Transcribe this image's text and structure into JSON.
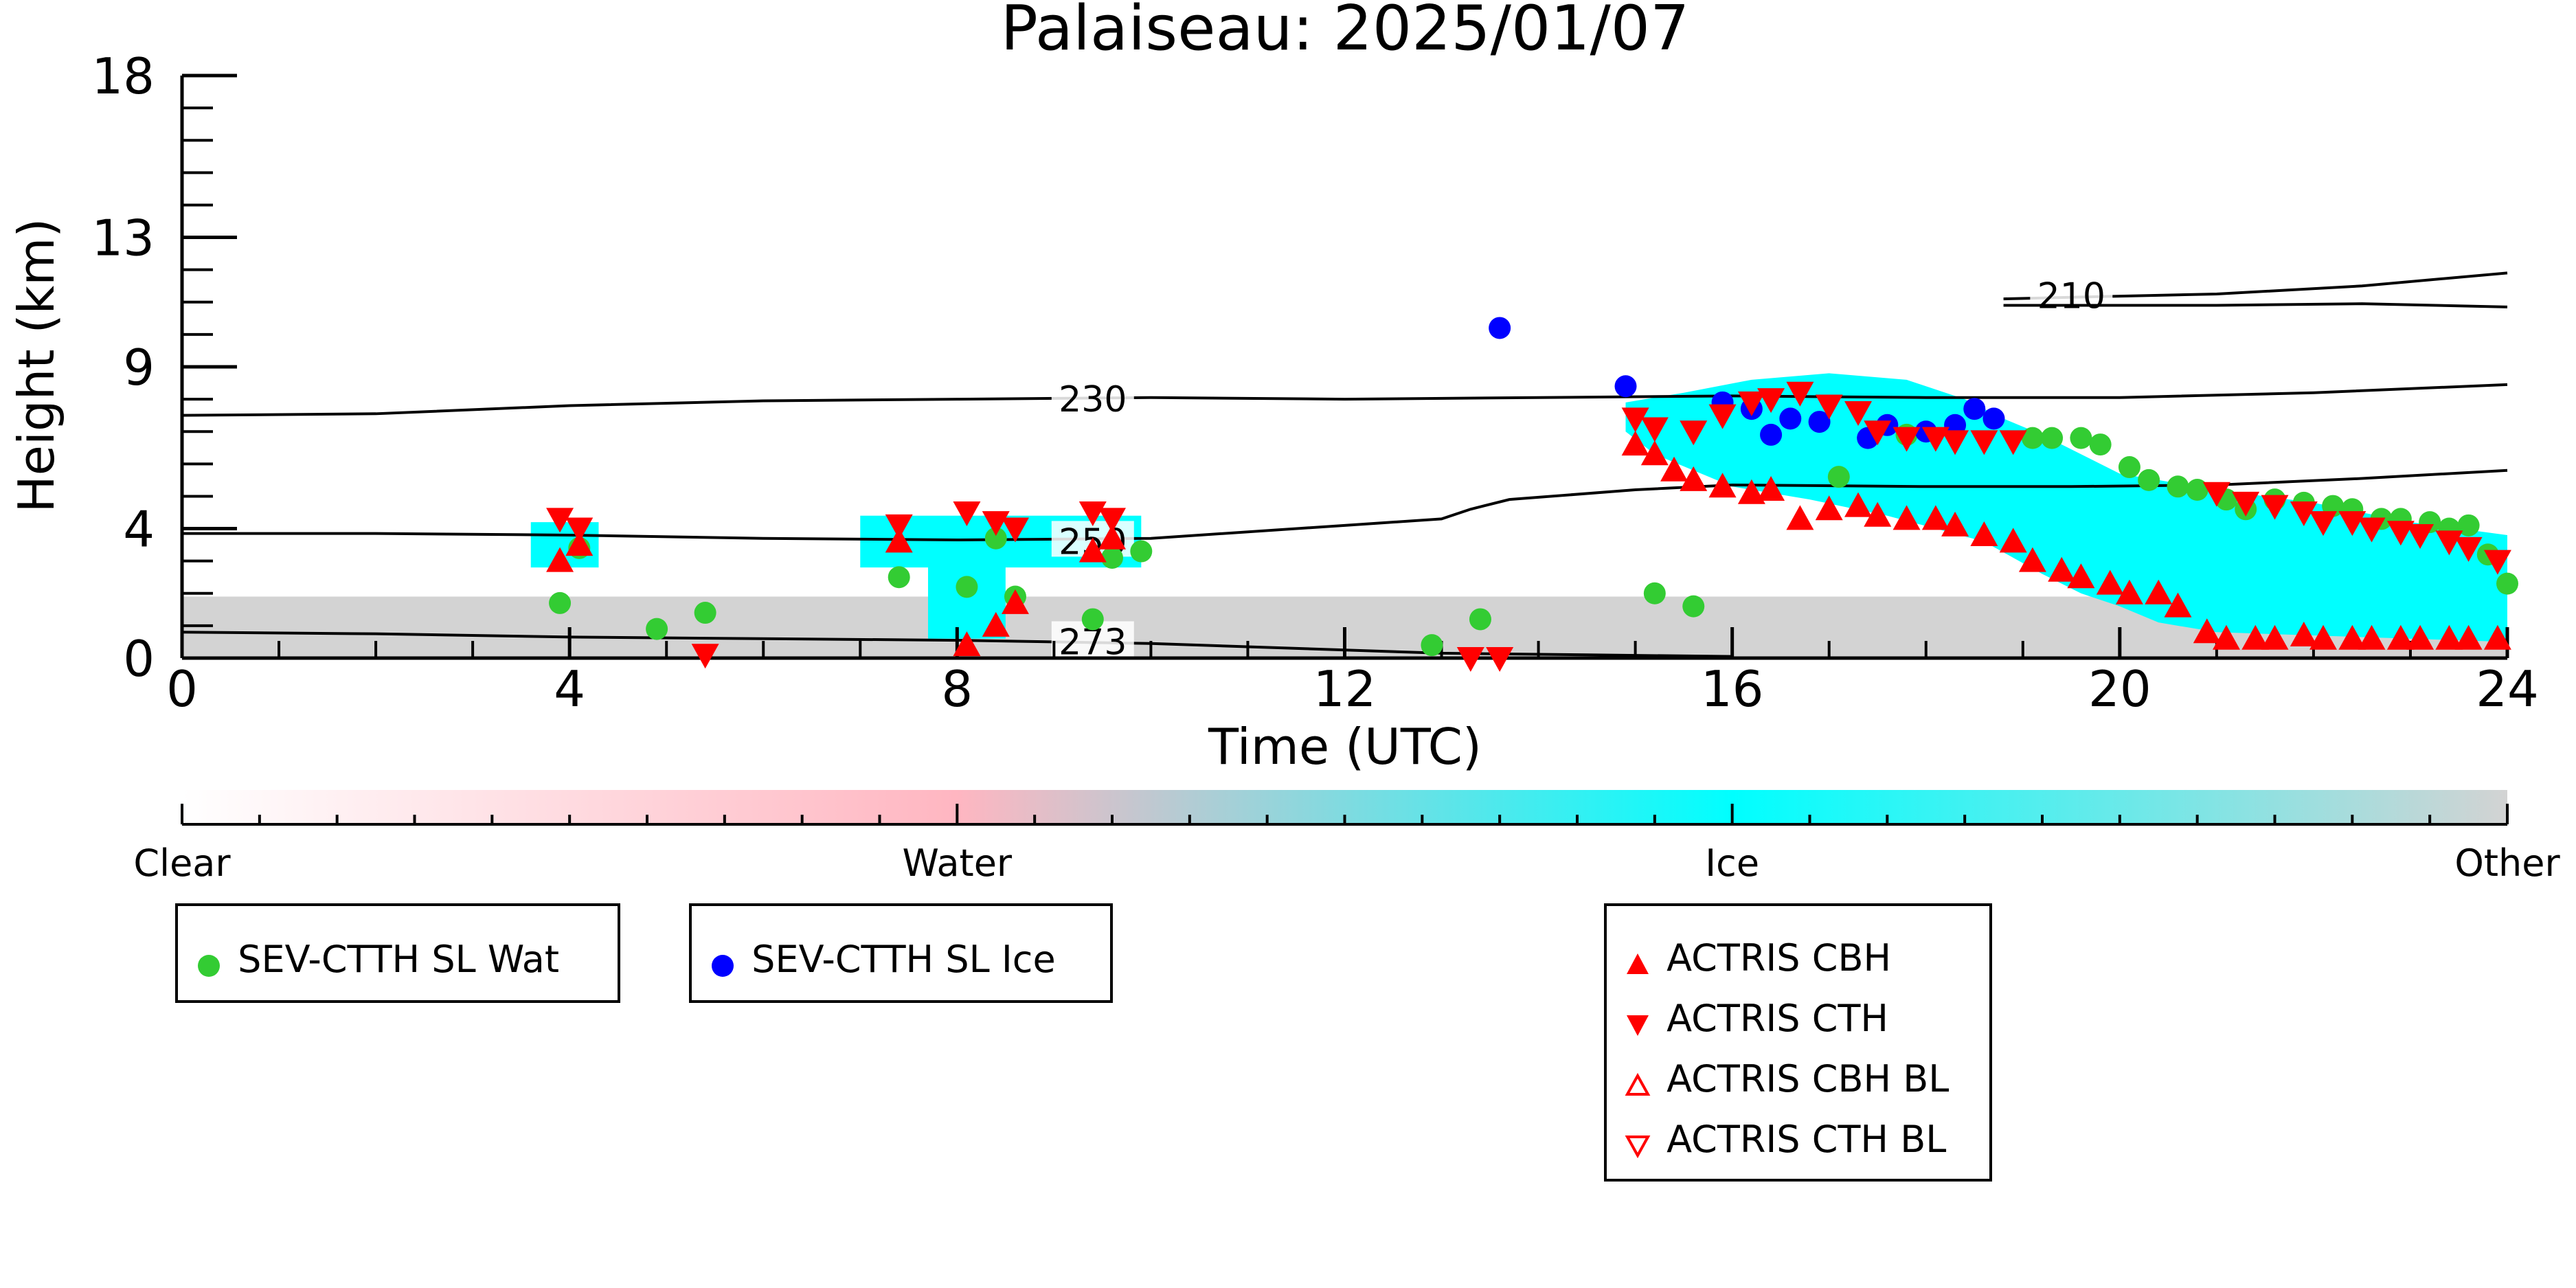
{
  "chart_data": {
    "type": "scatter",
    "title": "Palaiseau: 2025/01/07",
    "xlabel": "Time (UTC)",
    "ylabel": "Height (km)",
    "xlim": [
      0,
      24
    ],
    "ylim": [
      0,
      18
    ],
    "x_ticks": [
      "0",
      "4",
      "8",
      "12",
      "16",
      "20",
      "24"
    ],
    "y_ticks": [
      "0",
      "4",
      "9",
      "13",
      "18"
    ],
    "colorbar": {
      "labels": [
        "Clear",
        "Water",
        "Ice",
        "Other"
      ],
      "stops": [
        "#ffffff",
        "#ffb6c1",
        "#00ffff",
        "#d3d3d3"
      ]
    },
    "colors": {
      "sev_water": "#33cc33",
      "sev_ice": "#0000ff",
      "actris": "#ff0000",
      "ice_mask": "#00ffff",
      "other_mask": "#d3d3d3",
      "water_mask": "#ffb6c1"
    },
    "contours": [
      {
        "label": "210",
        "label_at": [
          19.5,
          11.2
        ],
        "points": [
          [
            18.8,
            11.1
          ],
          [
            19.5,
            11.15
          ],
          [
            21,
            11.25
          ],
          [
            22.5,
            11.5
          ],
          [
            24,
            11.9
          ]
        ]
      },
      {
        "label": "",
        "points": [
          [
            18.8,
            10.9
          ],
          [
            21,
            10.9
          ],
          [
            22.5,
            10.95
          ],
          [
            24,
            10.85
          ]
        ]
      },
      {
        "label": "230",
        "label_at": [
          9.4,
          8.0
        ],
        "points": [
          [
            0,
            7.5
          ],
          [
            2,
            7.55
          ],
          [
            4,
            7.8
          ],
          [
            6,
            7.95
          ],
          [
            8,
            8.0
          ],
          [
            10,
            8.05
          ],
          [
            12,
            8.0
          ],
          [
            14,
            8.05
          ],
          [
            16,
            8.1
          ],
          [
            18,
            8.05
          ],
          [
            20,
            8.05
          ],
          [
            22,
            8.2
          ],
          [
            24,
            8.45
          ]
        ]
      },
      {
        "label": "250",
        "label_at": [
          9.4,
          3.6
        ],
        "points": [
          [
            0,
            3.85
          ],
          [
            2,
            3.85
          ],
          [
            4,
            3.8
          ],
          [
            6,
            3.7
          ],
          [
            8,
            3.65
          ],
          [
            10,
            3.7
          ],
          [
            12,
            4.1
          ],
          [
            13,
            4.3
          ],
          [
            13.3,
            4.6
          ],
          [
            13.7,
            4.9
          ],
          [
            15,
            5.2
          ],
          [
            16,
            5.35
          ],
          [
            18,
            5.3
          ],
          [
            19.5,
            5.3
          ],
          [
            21,
            5.35
          ],
          [
            22.5,
            5.55
          ],
          [
            24,
            5.8
          ]
        ]
      },
      {
        "label": "273",
        "label_at": [
          9.4,
          0.5
        ],
        "points": [
          [
            0,
            0.8
          ],
          [
            2,
            0.75
          ],
          [
            4,
            0.65
          ],
          [
            6,
            0.6
          ],
          [
            8,
            0.55
          ],
          [
            10,
            0.45
          ],
          [
            11.5,
            0.3
          ],
          [
            13,
            0.15
          ],
          [
            14.5,
            0.1
          ],
          [
            16,
            0.05
          ]
        ]
      }
    ],
    "ice_regions": [
      {
        "x": [
          3.6,
          4.3
        ],
        "y": [
          2.8,
          4.2
        ]
      },
      {
        "x": [
          7.0,
          9.9
        ],
        "y": [
          2.8,
          4.4
        ]
      },
      {
        "x": [
          7.7,
          8.5
        ],
        "y": [
          0.6,
          3.0
        ]
      }
    ],
    "ice_polygon": [
      [
        14.9,
        7.9
      ],
      [
        15.5,
        8.2
      ],
      [
        16.2,
        8.6
      ],
      [
        17.0,
        8.8
      ],
      [
        17.8,
        8.6
      ],
      [
        18.4,
        8.0
      ],
      [
        18.8,
        7.4
      ],
      [
        19.2,
        6.9
      ],
      [
        20.0,
        5.7
      ],
      [
        21.0,
        5.2
      ],
      [
        22.0,
        4.8
      ],
      [
        23.0,
        4.2
      ],
      [
        24.0,
        3.8
      ],
      [
        24.0,
        0.5
      ],
      [
        22.0,
        0.7
      ],
      [
        21.0,
        0.8
      ],
      [
        20.4,
        1.1
      ],
      [
        20.0,
        1.6
      ],
      [
        19.6,
        2.0
      ],
      [
        19.2,
        2.6
      ],
      [
        18.6,
        3.6
      ],
      [
        17.6,
        4.4
      ],
      [
        16.8,
        4.9
      ],
      [
        16.0,
        5.3
      ],
      [
        15.2,
        6.3
      ],
      [
        14.9,
        7.0
      ]
    ],
    "other_ground": {
      "x": [
        0,
        24
      ],
      "y": [
        0,
        1.9
      ]
    },
    "sev_ctth_sl_wat": [
      [
        3.9,
        1.7
      ],
      [
        4.1,
        3.4
      ],
      [
        4.9,
        0.9
      ],
      [
        5.4,
        1.4
      ],
      [
        7.4,
        2.5
      ],
      [
        8.1,
        2.2
      ],
      [
        8.4,
        3.7
      ],
      [
        8.6,
        1.9
      ],
      [
        9.4,
        1.2
      ],
      [
        9.6,
        3.1
      ],
      [
        9.9,
        3.3
      ],
      [
        12.9,
        0.4
      ],
      [
        13.4,
        1.2
      ],
      [
        15.2,
        2.0
      ],
      [
        15.6,
        1.6
      ],
      [
        17.1,
        5.6
      ],
      [
        17.8,
        6.9
      ],
      [
        19.1,
        6.8
      ],
      [
        19.3,
        6.8
      ],
      [
        19.6,
        6.8
      ],
      [
        19.8,
        6.6
      ],
      [
        20.1,
        5.9
      ],
      [
        20.3,
        5.5
      ],
      [
        20.6,
        5.3
      ],
      [
        20.8,
        5.2
      ],
      [
        21.1,
        4.9
      ],
      [
        21.3,
        4.6
      ],
      [
        21.6,
        4.9
      ],
      [
        21.9,
        4.8
      ],
      [
        22.2,
        4.7
      ],
      [
        22.4,
        4.6
      ],
      [
        22.7,
        4.3
      ],
      [
        22.9,
        4.3
      ],
      [
        23.2,
        4.2
      ],
      [
        23.4,
        4.0
      ],
      [
        23.6,
        4.1
      ],
      [
        23.8,
        3.2
      ],
      [
        24.0,
        2.3
      ]
    ],
    "sev_ctth_sl_ice": [
      [
        13.6,
        10.2
      ],
      [
        14.9,
        8.4
      ],
      [
        15.9,
        7.9
      ],
      [
        16.2,
        7.7
      ],
      [
        16.4,
        6.9
      ],
      [
        16.6,
        7.4
      ],
      [
        16.9,
        7.3
      ],
      [
        17.4,
        6.8
      ],
      [
        17.6,
        7.2
      ],
      [
        18.0,
        7.0
      ],
      [
        18.3,
        7.2
      ],
      [
        18.5,
        7.7
      ],
      [
        18.7,
        7.4
      ]
    ],
    "actris_cbh": [
      [
        3.9,
        3.0
      ],
      [
        4.1,
        3.5
      ],
      [
        7.4,
        3.6
      ],
      [
        8.1,
        0.4
      ],
      [
        8.4,
        1.0
      ],
      [
        8.6,
        1.7
      ],
      [
        9.4,
        3.3
      ],
      [
        9.6,
        3.7
      ],
      [
        15.0,
        6.6
      ],
      [
        15.2,
        6.3
      ],
      [
        15.4,
        5.8
      ],
      [
        15.6,
        5.5
      ],
      [
        15.9,
        5.3
      ],
      [
        16.2,
        5.1
      ],
      [
        16.4,
        5.2
      ],
      [
        16.7,
        4.3
      ],
      [
        17.0,
        4.6
      ],
      [
        17.3,
        4.7
      ],
      [
        17.5,
        4.4
      ],
      [
        17.8,
        4.3
      ],
      [
        18.1,
        4.3
      ],
      [
        18.3,
        4.1
      ],
      [
        18.6,
        3.8
      ],
      [
        18.9,
        3.6
      ],
      [
        19.1,
        3.0
      ],
      [
        19.4,
        2.7
      ],
      [
        19.6,
        2.5
      ],
      [
        19.9,
        2.3
      ],
      [
        20.1,
        2.0
      ],
      [
        20.4,
        2.0
      ],
      [
        20.6,
        1.6
      ],
      [
        20.9,
        0.8
      ],
      [
        21.1,
        0.6
      ],
      [
        21.4,
        0.6
      ],
      [
        21.6,
        0.6
      ],
      [
        21.9,
        0.7
      ],
      [
        22.1,
        0.6
      ],
      [
        22.4,
        0.6
      ],
      [
        22.6,
        0.6
      ],
      [
        22.9,
        0.6
      ],
      [
        23.1,
        0.6
      ],
      [
        23.4,
        0.6
      ],
      [
        23.6,
        0.6
      ],
      [
        23.9,
        0.6
      ]
    ],
    "actris_cth": [
      [
        3.9,
        4.3
      ],
      [
        4.1,
        4.0
      ],
      [
        5.4,
        0.1
      ],
      [
        7.4,
        4.1
      ],
      [
        8.1,
        4.5
      ],
      [
        8.4,
        4.2
      ],
      [
        8.6,
        4.0
      ],
      [
        9.4,
        4.5
      ],
      [
        9.6,
        4.3
      ],
      [
        13.3,
        0.0
      ],
      [
        13.6,
        0.0
      ],
      [
        15.0,
        7.4
      ],
      [
        15.2,
        7.1
      ],
      [
        15.6,
        7.0
      ],
      [
        15.9,
        7.5
      ],
      [
        16.2,
        7.9
      ],
      [
        16.4,
        8.0
      ],
      [
        16.7,
        8.2
      ],
      [
        17.0,
        7.8
      ],
      [
        17.3,
        7.6
      ],
      [
        17.5,
        7.0
      ],
      [
        17.8,
        6.8
      ],
      [
        18.1,
        6.8
      ],
      [
        18.3,
        6.7
      ],
      [
        18.6,
        6.7
      ],
      [
        18.9,
        6.7
      ],
      [
        21.0,
        5.1
      ],
      [
        21.3,
        4.8
      ],
      [
        21.6,
        4.7
      ],
      [
        21.9,
        4.5
      ],
      [
        22.1,
        4.2
      ],
      [
        22.4,
        4.2
      ],
      [
        22.6,
        4.0
      ],
      [
        22.9,
        3.9
      ],
      [
        23.1,
        3.8
      ],
      [
        23.4,
        3.6
      ],
      [
        23.6,
        3.4
      ],
      [
        23.9,
        3.0
      ]
    ],
    "actris_cbh_bl": [],
    "actris_cth_bl": []
  },
  "legend": {
    "sev_wat": "SEV-CTTH SL Wat",
    "sev_ice": "SEV-CTTH SL Ice",
    "actris_cbh": "ACTRIS CBH",
    "actris_cth": "ACTRIS CTH",
    "actris_cbh_bl": "ACTRIS CBH BL",
    "actris_cth_bl": "ACTRIS CTH BL"
  }
}
